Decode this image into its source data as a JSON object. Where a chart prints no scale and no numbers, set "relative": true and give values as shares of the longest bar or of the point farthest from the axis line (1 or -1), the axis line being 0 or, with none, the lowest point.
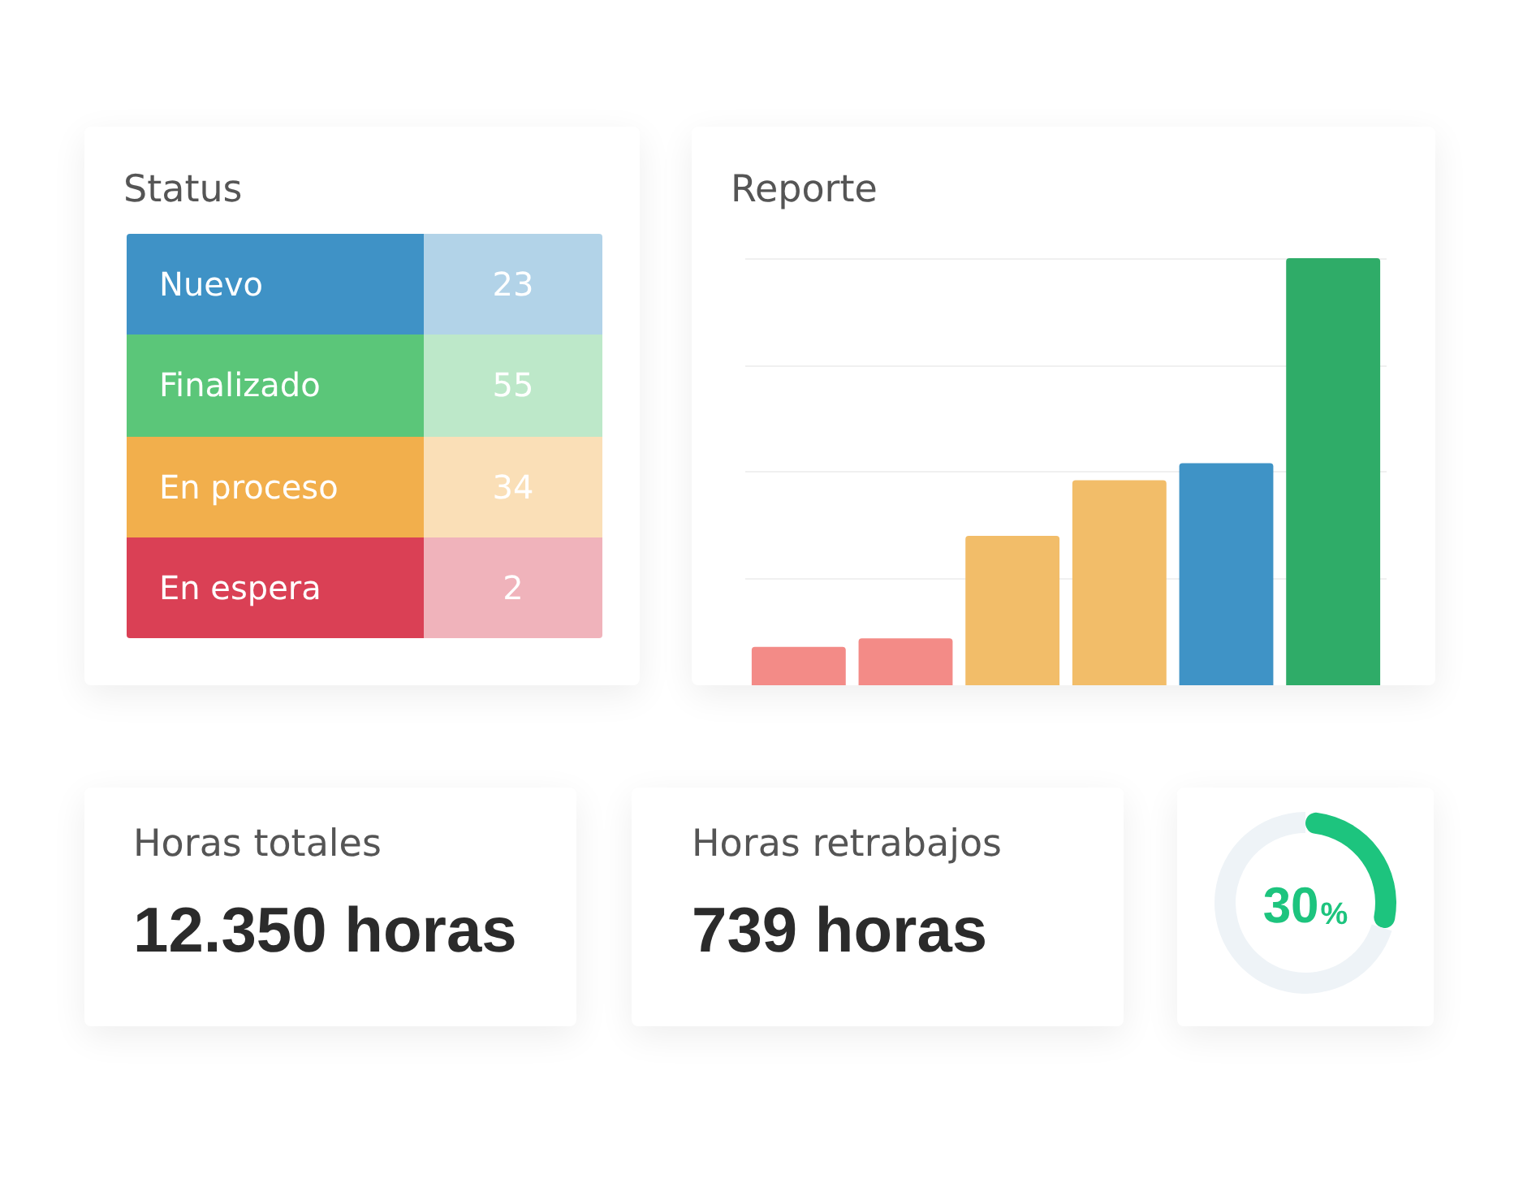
{
  "chart_data": [
    {
      "type": "other",
      "title": "Status",
      "categories": [
        "Nuevo",
        "Finalizado",
        "En proceso",
        "En espera"
      ],
      "values": [
        23,
        55,
        34,
        2
      ],
      "colors": [
        "#3f92c6",
        "#5bc679",
        "#f2af4c",
        "#da4055"
      ],
      "data_labels": true
    },
    {
      "type": "bar",
      "title": "Reporte",
      "categories": [
        null,
        null,
        null,
        null,
        null,
        null
      ],
      "values": [
        0.09,
        0.11,
        0.35,
        0.48,
        0.52,
        1
      ],
      "colors": [
        "#f38b87",
        "#f38b87",
        "#f2bd69",
        "#f2bd69",
        "#3f93c6",
        "#2fac68"
      ],
      "relative": true,
      "grid": "y"
    },
    {
      "type": "other",
      "title": "Horas totales",
      "annotations": [
        "12.350 horas"
      ]
    },
    {
      "type": "other",
      "title": "Horas retrabajos",
      "annotations": [
        "739 horas"
      ]
    },
    {
      "type": "donut",
      "categories": [
        null,
        null
      ],
      "values": [
        30,
        70
      ],
      "colors": [
        "#1dc47e",
        "#eef3f7"
      ],
      "annotations": [
        "30%"
      ]
    }
  ]
}
